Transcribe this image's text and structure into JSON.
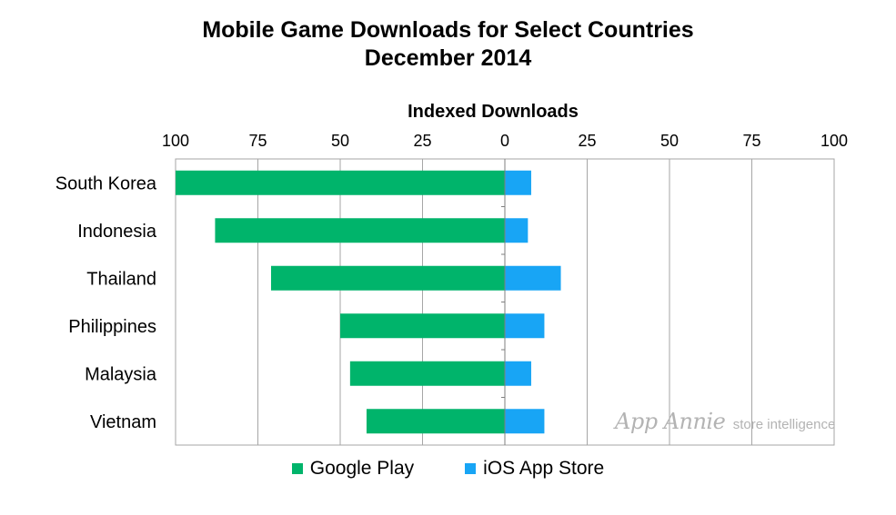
{
  "title": {
    "line1": "Mobile Game Downloads for Select Countries",
    "line2": "December 2014"
  },
  "chart_data": {
    "type": "bar",
    "orientation": "horizontal",
    "layout": "diverging",
    "xlabel": "Indexed Downloads",
    "left_axis_ticks": [
      "100",
      "75",
      "50",
      "25",
      "0"
    ],
    "right_axis_ticks": [
      "25",
      "50",
      "75",
      "100"
    ],
    "xlim": [
      0,
      100
    ],
    "grid": true,
    "legend_position": "bottom",
    "categories": [
      "South Korea",
      "Indonesia",
      "Thailand",
      "Philippines",
      "Malaysia",
      "Vietnam"
    ],
    "series": [
      {
        "name": "Google Play",
        "side": "left",
        "color": "#00b46b",
        "values": [
          100,
          88,
          71,
          50,
          47,
          42
        ]
      },
      {
        "name": "iOS App Store",
        "side": "right",
        "color": "#18a5f5",
        "values": [
          8,
          7,
          17,
          12,
          8,
          12
        ]
      }
    ]
  },
  "legend": [
    {
      "label": "Google Play",
      "color": "#00b46b"
    },
    {
      "label": "iOS App Store",
      "color": "#18a5f5"
    }
  ],
  "watermark": {
    "brand": "App Annie",
    "tagline": "store intelligence"
  }
}
